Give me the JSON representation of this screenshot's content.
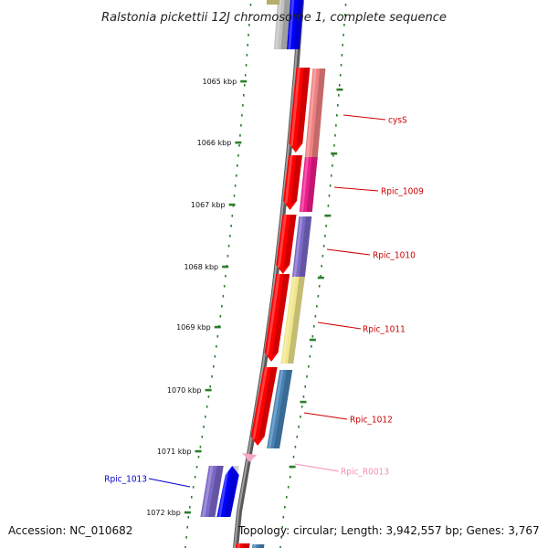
{
  "title": "Ralstonia pickettii 12J chromosome 1, complete sequence",
  "accession": "Accession: NC_010682",
  "topology": "Topology: circular; Length: 3,942,557 bp; Genes: 3,767",
  "colors": {
    "backbone": "#808080",
    "tick": "#2d7d2d",
    "forward_label": "#cc0000",
    "reverse_label": "#0000cc",
    "rna_label": "#f48fb1"
  },
  "ticks": [
    {
      "label": "1065 kbp"
    },
    {
      "label": "1066 kbp"
    },
    {
      "label": "1067 kbp"
    },
    {
      "label": "1068 kbp"
    },
    {
      "label": "1069 kbp"
    },
    {
      "label": "1070 kbp"
    },
    {
      "label": "1071 kbp"
    },
    {
      "label": "1072 kbp"
    }
  ],
  "genes": [
    {
      "label": "cysS",
      "strand": "+",
      "color": "#f08080"
    },
    {
      "label": "Rpic_1009",
      "strand": "+",
      "color": "#ee1c8c"
    },
    {
      "label": "Rpic_1010",
      "strand": "+",
      "color": "#7b68c8"
    },
    {
      "label": "Rpic_1011",
      "strand": "+",
      "color": "#f0e68c"
    },
    {
      "label": "Rpic_1012",
      "strand": "+",
      "color": "#4682b4"
    },
    {
      "label": "Rpic_R0013",
      "strand": "+",
      "color": "#f4a6c6"
    },
    {
      "label": "Rpic_1013",
      "strand": "-",
      "color": "#7b68c8"
    }
  ]
}
